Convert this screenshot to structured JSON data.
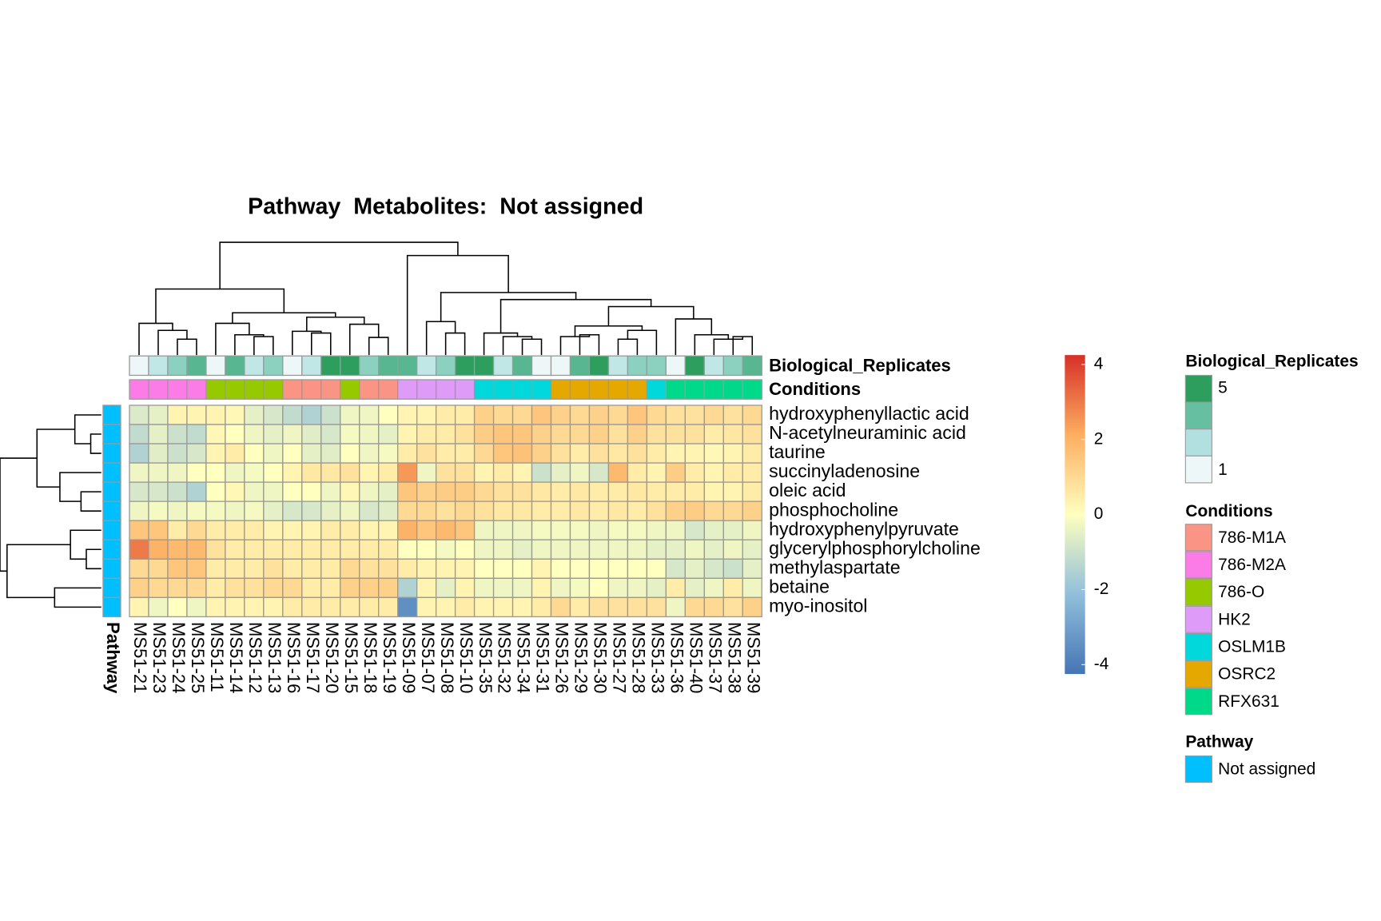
{
  "chart_data": {
    "type": "heatmap",
    "title": "Pathway  Metabolites:  Not assigned",
    "columns": [
      "MS51-21",
      "MS51-23",
      "MS51-24",
      "MS51-25",
      "MS51-11",
      "MS51-14",
      "MS51-12",
      "MS51-13",
      "MS51-16",
      "MS51-17",
      "MS51-20",
      "MS51-15",
      "MS51-18",
      "MS51-19",
      "MS51-09",
      "MS51-07",
      "MS51-08",
      "MS51-10",
      "MS51-35",
      "MS51-32",
      "MS51-34",
      "MS51-31",
      "MS51-26",
      "MS51-29",
      "MS51-30",
      "MS51-27",
      "MS51-28",
      "MS51-33",
      "MS51-36",
      "MS51-40",
      "MS51-37",
      "MS51-38",
      "MS51-39"
    ],
    "rows": [
      "hydroxyphenyllactic acid",
      "N-acetylneuraminic acid",
      "taurine",
      "succinyladenosine",
      "oleic acid",
      "phosphocholine",
      "hydroxyphenylpyruvate",
      "glycerylphosphorylcholine",
      "methylaspartate",
      "betaine",
      "myo-inositol"
    ],
    "values": [
      [
        -0.7,
        -0.5,
        0.3,
        0.3,
        0.3,
        0.2,
        -0.5,
        -0.8,
        -1.2,
        -1.5,
        -1.0,
        -0.3,
        -0.3,
        0,
        0.3,
        0.3,
        0.5,
        0.5,
        1.2,
        1.0,
        1.0,
        1.5,
        1.2,
        1.0,
        1.2,
        1.0,
        1.5,
        1.0,
        0.8,
        0.8,
        1.0,
        0.8,
        1.0
      ],
      [
        -1.2,
        -0.5,
        -1.0,
        -1.2,
        0.2,
        0,
        -0.3,
        -0.5,
        -0.3,
        -0.6,
        -0.8,
        -0.2,
        -0.3,
        -0.5,
        0.3,
        0.5,
        0.5,
        0.8,
        1.3,
        1.5,
        1.5,
        1.2,
        1.0,
        1.0,
        1.2,
        0.8,
        1.2,
        0.8,
        0.8,
        0.8,
        0.5,
        0.6,
        0.8
      ],
      [
        -1.5,
        -0.6,
        -1.0,
        -0.8,
        0.3,
        0.5,
        0,
        -0.3,
        0,
        -0.5,
        -0.6,
        0,
        -0.3,
        -0.2,
        0.5,
        0.8,
        0.5,
        0.5,
        1.0,
        1.5,
        1.6,
        1.2,
        0.8,
        0.5,
        0.8,
        0.6,
        0.8,
        0.5,
        0.3,
        0.3,
        0.2,
        0.3,
        0.5
      ],
      [
        -0.3,
        -0.3,
        -0.3,
        0,
        0,
        -0.3,
        -0.2,
        0,
        0.3,
        0.6,
        0.6,
        0.8,
        0.3,
        0.5,
        2.5,
        -0.3,
        0.8,
        0.8,
        0.3,
        0.5,
        0.3,
        -1.0,
        -0.5,
        -0.3,
        -0.8,
        1.8,
        0.5,
        0.3,
        1.3,
        0.5,
        0.3,
        0.5,
        0.5
      ],
      [
        -0.8,
        -0.8,
        -1.0,
        -1.5,
        0,
        0.2,
        -0.3,
        -0.3,
        0,
        0,
        -0.3,
        0.2,
        -0.3,
        -0.5,
        1.5,
        1.2,
        1.3,
        1.3,
        1.0,
        0.8,
        0.8,
        0.6,
        0.5,
        0.6,
        0.5,
        0.5,
        0.6,
        0.5,
        0.5,
        0.5,
        0.3,
        0.3,
        0.5
      ],
      [
        -0.3,
        -0.2,
        -0.3,
        -0.2,
        -0.2,
        -0.3,
        -0.2,
        -0.5,
        -0.8,
        -0.8,
        -0.5,
        -0.3,
        -0.8,
        -0.6,
        1.0,
        1.0,
        0.8,
        1.0,
        0.8,
        0.6,
        0.6,
        0.5,
        0.5,
        0.6,
        0.5,
        0.6,
        0.5,
        0.8,
        1.2,
        1.3,
        1.0,
        1.0,
        1.2
      ],
      [
        1.5,
        1.5,
        0.5,
        1.0,
        0.5,
        0.5,
        0.5,
        0.3,
        0.3,
        0.3,
        0.5,
        0.5,
        0.3,
        0.3,
        2.0,
        1.5,
        1.8,
        1.5,
        -0.3,
        -0.3,
        -0.3,
        -0.2,
        -0.2,
        -0.2,
        -0.3,
        -0.2,
        -0.2,
        -0.3,
        -0.3,
        -0.8,
        -0.5,
        -0.5,
        -0.3
      ],
      [
        3.0,
        2.0,
        1.8,
        1.8,
        0.8,
        0.5,
        0.5,
        0.5,
        0.5,
        0.5,
        0.5,
        0.5,
        0.5,
        0.5,
        0,
        0,
        -0.2,
        0,
        -0.3,
        -0.3,
        -0.5,
        -0.3,
        -0.3,
        -0.3,
        -0.3,
        -0.3,
        -0.3,
        -0.5,
        -0.5,
        -0.3,
        -0.5,
        -0.3,
        -0.5
      ],
      [
        1.0,
        1.0,
        1.5,
        1.5,
        0.5,
        0.5,
        0.5,
        0.8,
        0.5,
        0.5,
        0.5,
        1.0,
        0.8,
        0.8,
        0.5,
        0.3,
        0.3,
        0.3,
        0,
        0,
        0,
        0.3,
        0,
        0,
        0,
        0,
        0,
        0,
        -0.8,
        -0.5,
        -0.8,
        -1.0,
        -0.5
      ],
      [
        1.2,
        1.0,
        1.0,
        1.0,
        0.5,
        0.8,
        0.8,
        1.0,
        1.0,
        0.5,
        0.5,
        1.2,
        1.2,
        1.2,
        -1.5,
        0.3,
        -0.5,
        0.3,
        -0.3,
        -0.3,
        -0.3,
        0.3,
        -0.3,
        -0.2,
        0,
        -0.3,
        -0.3,
        -0.5,
        0.5,
        -0.5,
        -0.3,
        0.5,
        -0.3
      ],
      [
        0.3,
        -0.3,
        0,
        -0.3,
        0.3,
        0.3,
        0.3,
        0.3,
        0.5,
        0.5,
        0.5,
        0.5,
        0.5,
        0.5,
        -3.5,
        0.3,
        0.3,
        0.5,
        0.3,
        0.3,
        0.3,
        0.5,
        1.0,
        0.5,
        0.8,
        0.8,
        0.8,
        0.8,
        -0.3,
        1.0,
        1.0,
        0.8,
        1.2
      ]
    ],
    "color_scale": {
      "colors": [
        "#4575B4",
        "#91BFDB",
        "#FFFFBF",
        "#FDAE61",
        "#D73027"
      ],
      "range": [
        -4.25,
        4.25
      ],
      "ticks": [
        -4,
        -2,
        0,
        2,
        4
      ]
    },
    "column_annotations": [
      {
        "name": "Biological_Replicates",
        "values": [
          1,
          2,
          3,
          4,
          1,
          4,
          2,
          3,
          1,
          2,
          5,
          5,
          3,
          4,
          4,
          2,
          3,
          5,
          5,
          2,
          4,
          1,
          1,
          4,
          5,
          2,
          3,
          3,
          1,
          5,
          2,
          3,
          4
        ],
        "colors": [
          "#EEF7F7",
          "#B2E0E0",
          "#66BFA0",
          "#2E9E5F"
        ],
        "range": [
          1,
          5
        ],
        "legend_ticks": [
          5,
          1
        ]
      },
      {
        "name": "Conditions",
        "values": [
          "786-M2A",
          "786-M2A",
          "786-M2A",
          "786-M2A",
          "786-O",
          "786-O",
          "786-O",
          "786-O",
          "786-M1A",
          "786-M1A",
          "786-M1A",
          "786-O",
          "786-M1A",
          "786-M1A",
          "HK2",
          "HK2",
          "HK2",
          "HK2",
          "OSLM1B",
          "OSLM1B",
          "OSLM1B",
          "OSLM1B",
          "OSRC2",
          "OSRC2",
          "OSRC2",
          "OSRC2",
          "OSRC2",
          "OSLM1B",
          "RFX631",
          "RFX631",
          "RFX631",
          "RFX631",
          "RFX631"
        ],
        "levels": [
          "786-M1A",
          "786-M2A",
          "786-O",
          "HK2",
          "OSLM1B",
          "OSRC2",
          "RFX631"
        ],
        "colors": [
          "#FA9586",
          "#FB7CE6",
          "#96C900",
          "#DE9BF8",
          "#00D8DB",
          "#E5A800",
          "#00D98A"
        ]
      }
    ],
    "row_annotations": [
      {
        "name": "Pathway",
        "values": [
          "Not assigned",
          "Not assigned",
          "Not assigned",
          "Not assigned",
          "Not assigned",
          "Not assigned",
          "Not assigned",
          "Not assigned",
          "Not assigned",
          "Not assigned",
          "Not assigned"
        ],
        "levels": [
          "Not assigned"
        ],
        "colors": [
          "#00BFFF"
        ]
      }
    ]
  }
}
